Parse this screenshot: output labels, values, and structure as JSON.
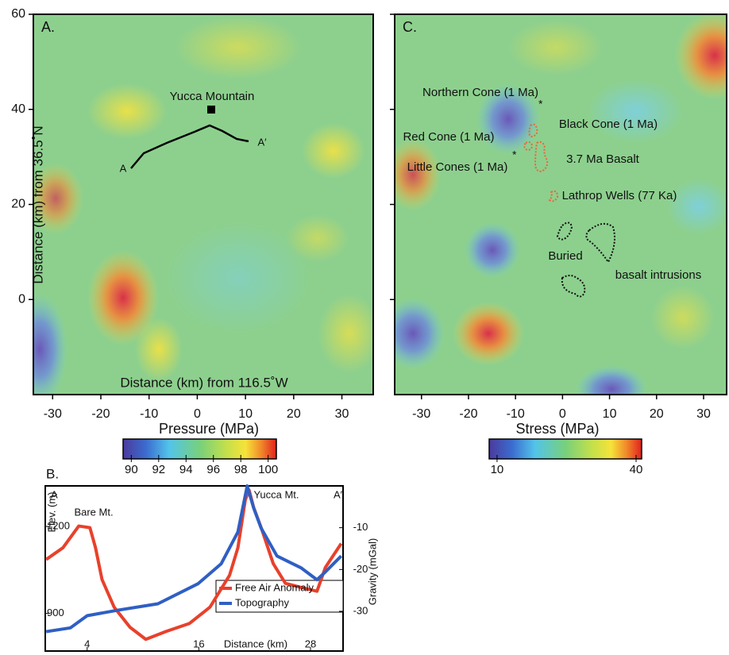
{
  "panel_a": {
    "label": "A.",
    "xlim": [
      -34,
      36.5
    ],
    "ylim": [
      -20,
      60
    ],
    "xticks": [
      -30,
      -20,
      -10,
      0,
      10,
      20,
      30
    ],
    "yticks": [
      0,
      20,
      40,
      60
    ],
    "xlabel": "Distance (km) from 116.5˚W",
    "ylabel": "Distance (km) from 36.5˚N",
    "site": "Yucca Mountain",
    "profile_start": "A",
    "profile_end": "A′",
    "colorbar": {
      "label": "Pressure (MPa)",
      "lim": [
        89.4,
        100.6
      ],
      "ticks": [
        90,
        92,
        94,
        96,
        98,
        100
      ]
    }
  },
  "panel_c": {
    "label": "C.",
    "xlim": [
      -35.7,
      34.9
    ],
    "ylim": [
      -20,
      60
    ],
    "xticks": [
      -30,
      -20,
      -10,
      0,
      10,
      20,
      30
    ],
    "yticks": [
      0,
      20,
      40,
      60
    ],
    "annotations": [
      "Northern Cone (1 Ma)",
      "Black Cone (1 Ma)",
      "Red Cone (1 Ma)",
      "3.7 Ma Basalt",
      "Little Cones (1 Ma)",
      "Lathrop Wells (77 Ka)",
      "Buried",
      "basalt intrusions"
    ],
    "colorbar": {
      "label": "Stress (MPa)",
      "lim": [
        8.3,
        41.2
      ],
      "ticks": [
        10,
        40
      ]
    }
  },
  "panel_b": {
    "type": "line",
    "label": "B.",
    "start": "A",
    "end": "A′",
    "peak": "Yucca Mt.",
    "bare": "Bare Mt.",
    "xlabel": "Distance (km)",
    "ylabel": "Elev. (m)",
    "y2label": "Gravity (mGal)",
    "xlim": [
      -0.5,
      31.5
    ],
    "xticks": [
      4,
      16,
      28
    ],
    "ylim": [
      770,
      1340
    ],
    "yticks": [
      900,
      1200
    ],
    "y2lim": [
      -39.5,
      0
    ],
    "y2ticks": [
      -10,
      -20,
      -30
    ],
    "series": [
      {
        "name": "Free Air Anomaly",
        "color": "#e8412c",
        "axis": "y2",
        "x": [
          -0.4,
          1.4,
          3.1,
          4.3,
          4.9,
          5.6,
          6.9,
          8.6,
          10.3,
          12.5,
          15.0,
          17.2,
          19.3,
          20.2,
          21.0,
          21.4,
          21.9,
          22.7,
          24.0,
          25.3,
          27.0,
          28.7,
          29.6,
          31.3
        ],
        "values": [
          -17.6,
          -14.8,
          -9.6,
          -10.0,
          -14.8,
          -22.4,
          -29.0,
          -33.8,
          -36.7,
          -34.8,
          -32.9,
          -29.0,
          -21.4,
          -14.8,
          -3.3,
          -1.0,
          -5.2,
          -10.0,
          -18.6,
          -23.3,
          -24.3,
          -25.2,
          -19.5,
          -13.8
        ]
      },
      {
        "name": "Topography",
        "color": "#2f5fc4",
        "x": [
          -0.4,
          2.2,
          4.0,
          7.3,
          11.6,
          15.9,
          18.4,
          20.2,
          21.2,
          21.9,
          22.7,
          24.4,
          27.0,
          28.7,
          29.6,
          31.3
        ],
        "values": [
          837,
          850,
          892,
          911,
          933,
          1002,
          1071,
          1181,
          1340,
          1263,
          1194,
          1098,
          1057,
          1016,
          1043,
          1098
        ]
      }
    ]
  }
}
